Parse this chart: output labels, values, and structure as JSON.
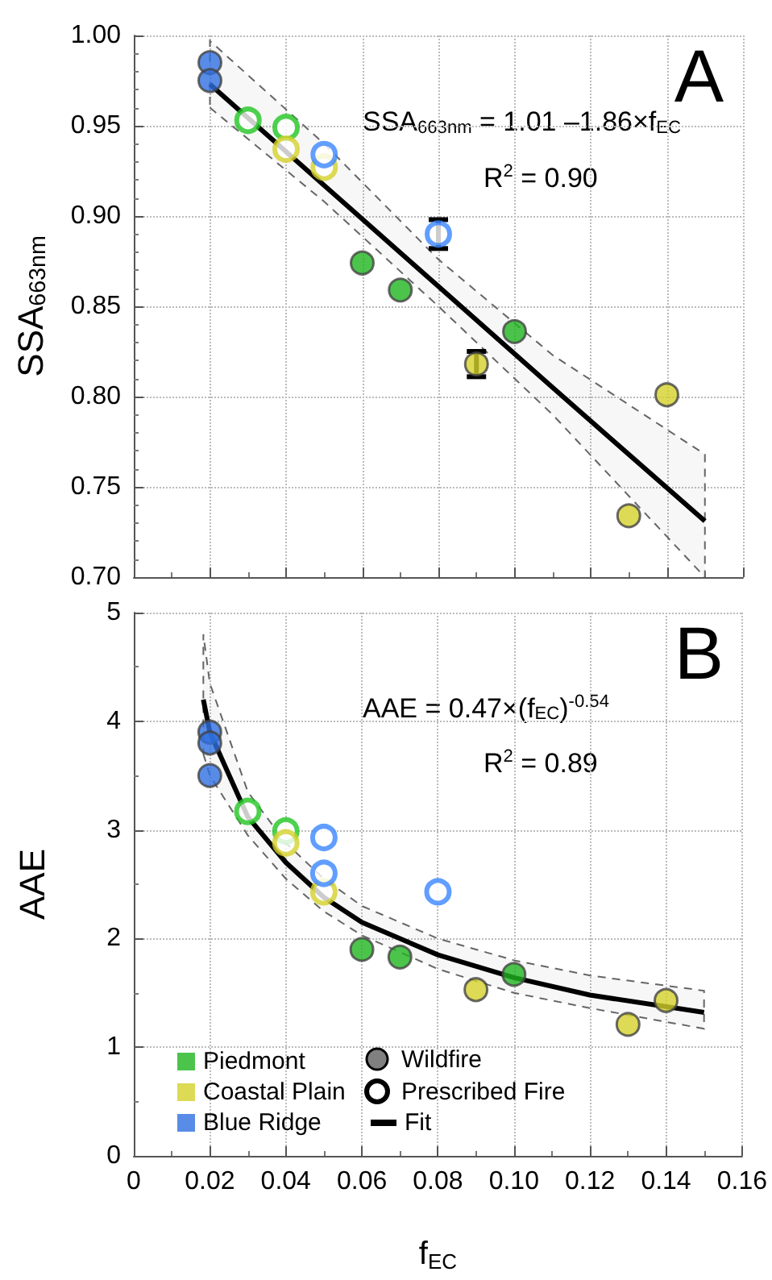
{
  "chart_data": [
    {
      "type": "scatter",
      "ylabel": "SSA$_{663nm}$",
      "annotations": [
        "A",
        "SSA$_{663nm}$ = 1.01 –1.86×f$_{EC}$",
        "R$^{2}$ = 0.90"
      ],
      "xlim": [
        0,
        0.16
      ],
      "xticks": [
        0,
        0.02,
        0.04,
        0.06,
        0.08,
        0.1,
        0.12,
        0.14,
        0.16
      ],
      "ylim": [
        0.7,
        1.0
      ],
      "yticks": [
        {
          "value": 0.7,
          "label": "0.70"
        },
        0.75,
        {
          "value": 0.8,
          "label": "0.80"
        },
        0.85,
        {
          "value": 0.9,
          "label": "0.90"
        },
        0.95,
        {
          "value": 1.0,
          "label": "1.00"
        }
      ],
      "tick_labels": "y",
      "grid": true,
      "legend": false,
      "series": [
        {
          "color": "#1fb51f",
          "marker": "circle",
          "x": [
            0.06,
            0.07,
            0.1
          ],
          "values": [
            0.874,
            0.859,
            0.836
          ]
        },
        {
          "color": "#d4d12a",
          "marker": "circle",
          "x": [
            0.09,
            0.13,
            0.14
          ],
          "values": [
            0.818,
            0.734,
            0.801
          ],
          "errors": [
            0.007,
            null,
            null
          ]
        },
        {
          "color": "#2f6fe0",
          "marker": "circle",
          "x": [
            0.02,
            0.02
          ],
          "values": [
            0.985,
            0.975
          ]
        },
        {
          "color": "#22c522",
          "marker": "circle",
          "x": [
            0.03,
            0.04
          ],
          "values": [
            0.953,
            0.949
          ]
        },
        {
          "color": "#d4d12a",
          "marker": "circle",
          "x": [
            0.04,
            0.05
          ],
          "values": [
            0.937,
            0.927
          ]
        },
        {
          "color": "#3a86ff",
          "marker": "circle",
          "x": [
            0.05,
            0.08
          ],
          "values": [
            0.934,
            0.89
          ],
          "errors": [
            null,
            0.008
          ]
        },
        {
          "type": "line",
          "color": "#000000",
          "marker": "none",
          "line_style": "solid",
          "x": [
            0.02,
            0.05,
            0.08,
            0.11,
            0.15
          ],
          "values": [
            0.973,
            0.917,
            0.861,
            0.805,
            0.731
          ],
          "lower": [
            0.96,
            0.908,
            0.85,
            0.79,
            0.7
          ],
          "upper": [
            0.997,
            0.94,
            0.876,
            0.823,
            0.768
          ]
        }
      ]
    },
    {
      "type": "scatter",
      "xlabel": "f$_{EC}$",
      "ylabel": "AAE",
      "annotations": [
        "B",
        "AAE = 0.47×(f$_{EC}$)$^{-0.54}$",
        "R$^{2}$ = 0.89",
        "Wildfire",
        "Prescribed Fire"
      ],
      "xlim": [
        0,
        0.16
      ],
      "xticks": [
        0,
        0.02,
        0.04,
        0.06,
        0.08,
        {
          "value": 0.1,
          "label": "0.10"
        },
        0.12,
        0.14,
        0.16
      ],
      "ylim": [
        0,
        5
      ],
      "yticks": [
        0,
        1,
        2,
        3,
        4,
        5
      ],
      "grid": true,
      "legend": "bottom left",
      "series": [
        {
          "name": "Piedmont",
          "color": "#1fb51f",
          "marker": "circle",
          "x": [
            0.06,
            0.07,
            0.1
          ],
          "values": [
            1.9,
            1.83,
            1.67
          ]
        },
        {
          "name": "Coastal Plain",
          "color": "#d4d12a",
          "marker": "circle",
          "x": [
            0.09,
            0.13,
            0.14
          ],
          "values": [
            1.53,
            1.21,
            1.43
          ]
        },
        {
          "name": "Blue Ridge",
          "color": "#2f6fe0",
          "marker": "circle",
          "x": [
            0.02,
            0.02,
            0.02
          ],
          "values": [
            3.9,
            3.8,
            3.5
          ]
        },
        {
          "color": "#22c522",
          "marker": "circle",
          "x": [
            0.03,
            0.04
          ],
          "values": [
            3.17,
            2.99
          ]
        },
        {
          "color": "#d4d12a",
          "marker": "circle",
          "x": [
            0.04,
            0.05
          ],
          "values": [
            2.88,
            2.43
          ]
        },
        {
          "color": "#3a86ff",
          "marker": "circle",
          "x": [
            0.05,
            0.05,
            0.08
          ],
          "values": [
            2.93,
            2.6,
            2.43
          ]
        },
        {
          "name": "Fit",
          "type": "line",
          "color": "#000000",
          "marker": "none",
          "line_style": "solid",
          "x": [
            0.0183,
            0.02,
            0.03,
            0.04,
            0.05,
            0.06,
            0.08,
            0.1,
            0.12,
            0.15
          ],
          "values": [
            4.2,
            3.9,
            3.12,
            2.7,
            2.38,
            2.15,
            1.85,
            1.64,
            1.48,
            1.32
          ],
          "lower": [
            3.7,
            3.5,
            2.95,
            2.55,
            2.25,
            2.03,
            1.72,
            1.5,
            1.36,
            1.17
          ],
          "upper": [
            4.8,
            4.35,
            3.35,
            2.88,
            2.55,
            2.3,
            2.0,
            1.8,
            1.66,
            1.52
          ]
        }
      ]
    }
  ]
}
